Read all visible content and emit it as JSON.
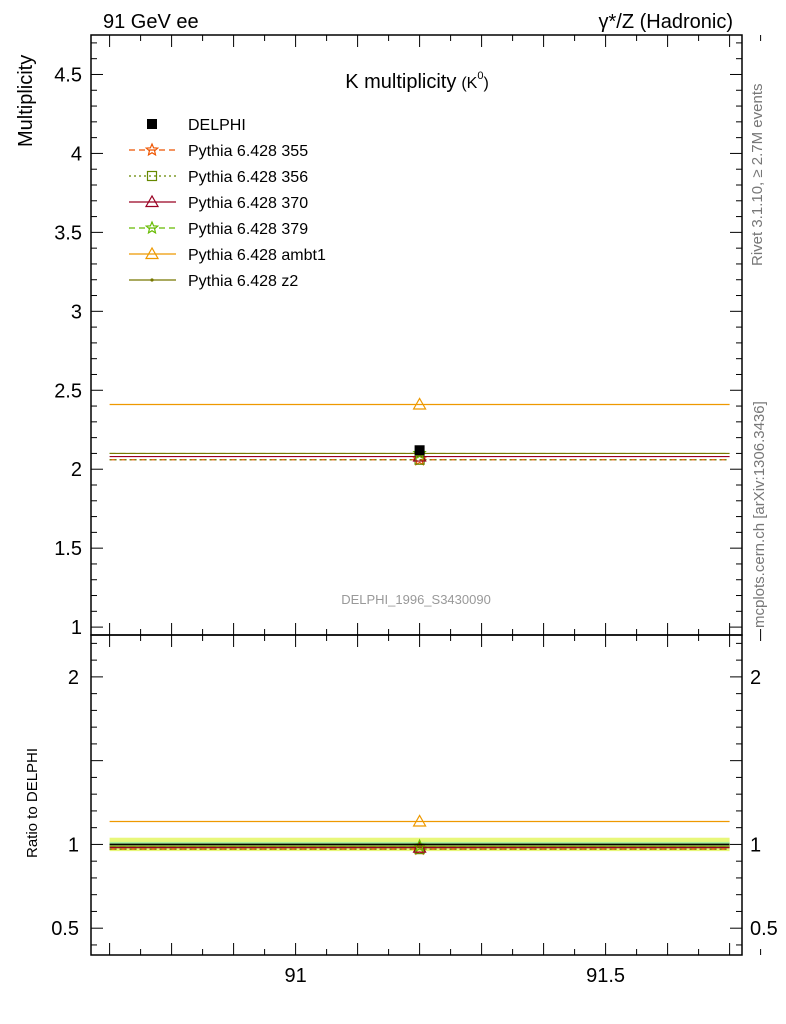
{
  "header": {
    "left": "91 GeV ee",
    "right": "γ*/Z (Hadronic)"
  },
  "side": {
    "top": "Rivet 3.1.10, ≥ 2.7M events",
    "bottom": "mcplots.cern.ch [arXiv:1306.3436]"
  },
  "chart_data": [
    {
      "type": "line",
      "title": "K multiplicity (K⁰)",
      "title_main": "K multiplicity",
      "title_sub": "(K",
      "title_sup": "0",
      "title_close": ")",
      "ylabel": "Multiplicity",
      "watermark": "DELPHI_1996_S3430090",
      "xlim": [
        90.67,
        91.72
      ],
      "ylim": [
        0.95,
        4.75
      ],
      "yticks": [
        1,
        1.5,
        2,
        2.5,
        3,
        3.5,
        4,
        4.5
      ],
      "ytick_labels": [
        "1",
        "1.5",
        "2",
        "2.5",
        "3",
        "3.5",
        "4",
        "4.5"
      ],
      "bin": [
        90.7,
        91.7
      ],
      "bin_center": 91.2,
      "legend_position": "top-left",
      "series": [
        {
          "name": "DELPHI",
          "value": 2.12,
          "color": "#000000",
          "marker": "square",
          "dash": "none"
        },
        {
          "name": "Pythia 6.428 355",
          "value": 2.06,
          "color": "#ee5500",
          "marker": "star",
          "dash": "dashed"
        },
        {
          "name": "Pythia 6.428 356",
          "value": 2.06,
          "color": "#668800",
          "marker": "open-square",
          "dash": "dotted"
        },
        {
          "name": "Pythia 6.428 370",
          "value": 2.08,
          "color": "#990022",
          "marker": "open-triangle",
          "dash": "solid"
        },
        {
          "name": "Pythia 6.428 379",
          "value": 2.1,
          "color": "#66bb00",
          "marker": "star",
          "dash": "dashed"
        },
        {
          "name": "Pythia 6.428 ambt1",
          "value": 2.41,
          "color": "#ee9900",
          "marker": "open-triangle",
          "dash": "solid"
        },
        {
          "name": "Pythia 6.428 z2",
          "value": 2.1,
          "color": "#777700",
          "marker": "dot",
          "dash": "solid"
        }
      ]
    },
    {
      "type": "line",
      "ylabel": "Ratio to DELPHI",
      "xlim": [
        90.67,
        91.72
      ],
      "ylim": [
        0.34,
        2.25
      ],
      "xticks": [
        91,
        91.5
      ],
      "xtick_labels": [
        "91",
        "91.5"
      ],
      "yticks": [
        0.5,
        1,
        2
      ],
      "ytick_labels": [
        "0.5",
        "1",
        "2"
      ],
      "band_total": [
        0.96,
        1.04
      ],
      "band_stat": [
        0.985,
        1.015
      ],
      "band_colors": {
        "total": "#e8f77a",
        "stat": "#a8ef9a"
      },
      "series": [
        {
          "name": "DELPHI",
          "value": 1.0
        },
        {
          "name": "Pythia 6.428 355",
          "value": 0.972
        },
        {
          "name": "Pythia 6.428 356",
          "value": 0.972
        },
        {
          "name": "Pythia 6.428 370",
          "value": 0.981
        },
        {
          "name": "Pythia 6.428 379",
          "value": 0.99
        },
        {
          "name": "Pythia 6.428 ambt1",
          "value": 1.137
        },
        {
          "name": "Pythia 6.428 z2",
          "value": 0.99
        }
      ]
    }
  ]
}
